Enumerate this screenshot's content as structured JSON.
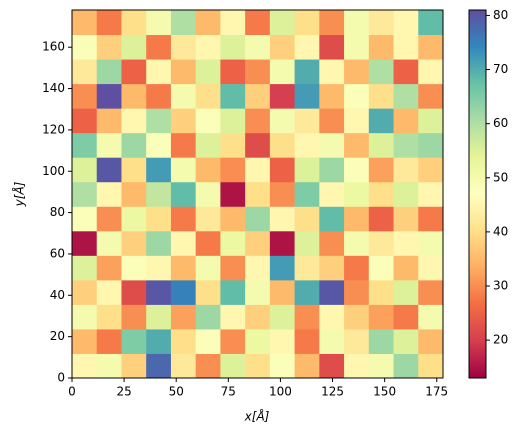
{
  "chart_data": {
    "type": "heatmap",
    "xlabel": "x[Å]",
    "ylabel": "y[Å]",
    "xlim": [
      0,
      178
    ],
    "ylim": [
      0,
      178
    ],
    "xticks": [
      0,
      25,
      50,
      75,
      100,
      125,
      150,
      175
    ],
    "yticks": [
      0,
      20,
      40,
      60,
      80,
      100,
      120,
      140,
      160
    ],
    "zlim": [
      13,
      81
    ],
    "zticks": [
      20,
      30,
      40,
      50,
      60,
      70,
      80
    ],
    "colorscale": [
      "#9e0142",
      "#d53e4f",
      "#f46d43",
      "#fdae61",
      "#fee08b",
      "#ffffbf",
      "#e6f598",
      "#abdda4",
      "#66c2a5",
      "#3288bd",
      "#5e4fa2"
    ],
    "z": [
      [
        45,
        50,
        38,
        78,
        42,
        30,
        55,
        40,
        48,
        35,
        22,
        45,
        50,
        62,
        40
      ],
      [
        35,
        28,
        65,
        70,
        40,
        48,
        30,
        52,
        45,
        28,
        50,
        42,
        62,
        55,
        35
      ],
      [
        50,
        40,
        30,
        55,
        32,
        62,
        45,
        38,
        55,
        30,
        45,
        38,
        32,
        28,
        50
      ],
      [
        38,
        45,
        22,
        80,
        75,
        40,
        68,
        50,
        35,
        70,
        80,
        30,
        40,
        55,
        30
      ],
      [
        55,
        32,
        48,
        45,
        35,
        50,
        30,
        45,
        72,
        42,
        38,
        28,
        48,
        35,
        45
      ],
      [
        15,
        50,
        38,
        62,
        45,
        28,
        52,
        38,
        15,
        55,
        30,
        50,
        42,
        45,
        50
      ],
      [
        48,
        30,
        52,
        40,
        28,
        42,
        35,
        62,
        45,
        40,
        68,
        35,
        25,
        38,
        28
      ],
      [
        60,
        45,
        35,
        58,
        68,
        50,
        15,
        40,
        30,
        65,
        45,
        52,
        40,
        55,
        45
      ],
      [
        55,
        80,
        40,
        72,
        50,
        35,
        30,
        45,
        25,
        55,
        62,
        48,
        32,
        42,
        38
      ],
      [
        65,
        50,
        62,
        48,
        28,
        55,
        40,
        22,
        40,
        45,
        50,
        35,
        55,
        60,
        62
      ],
      [
        25,
        35,
        45,
        60,
        38,
        48,
        55,
        30,
        50,
        42,
        30,
        45,
        70,
        35,
        55
      ],
      [
        30,
        82,
        35,
        28,
        50,
        40,
        68,
        38,
        20,
        72,
        35,
        48,
        40,
        60,
        30
      ],
      [
        42,
        62,
        25,
        45,
        35,
        55,
        25,
        30,
        50,
        70,
        45,
        35,
        60,
        25,
        45
      ],
      [
        48,
        38,
        55,
        28,
        42,
        45,
        55,
        50,
        38,
        45,
        22,
        50,
        35,
        45,
        35
      ],
      [
        35,
        28,
        40,
        50,
        60,
        35,
        45,
        28,
        55,
        40,
        30,
        50,
        42,
        45,
        68
      ]
    ]
  }
}
